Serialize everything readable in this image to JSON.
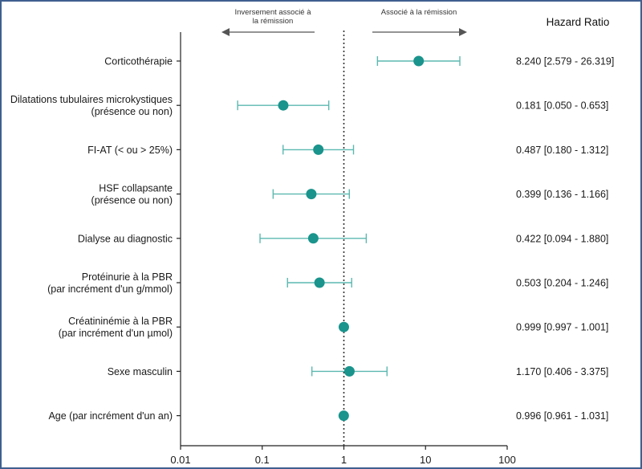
{
  "colors": {
    "marker": "#1a948c",
    "whisker": "#5bb8b0",
    "axis": "#222222",
    "arrow": "#555555",
    "border": "#3f5f8f"
  },
  "chart_data": {
    "type": "forest",
    "scale": "log",
    "xlim": [
      0.01,
      100
    ],
    "reference": 1,
    "xticks": [
      "0.01",
      "0.1",
      "1",
      "10",
      "100"
    ],
    "xtick_values": [
      0.01,
      0.1,
      1,
      10,
      100
    ],
    "column_header": "Hazard Ratio",
    "direction_left": [
      "Inversement associé à",
      "la rémission"
    ],
    "direction_right": "Associé à la rémission",
    "rows": [
      {
        "label": [
          "Corticothérapie"
        ],
        "hr": 8.24,
        "lo": 2.579,
        "hi": 26.319,
        "text": "8.240 [2.579 - 26.319]"
      },
      {
        "label": [
          "Dilatations tubulaires microkystiques",
          "(présence ou non)"
        ],
        "hr": 0.181,
        "lo": 0.05,
        "hi": 0.653,
        "text": "0.181 [0.050 - 0.653]"
      },
      {
        "label": [
          "FI-AT (< ou > 25%)"
        ],
        "hr": 0.487,
        "lo": 0.18,
        "hi": 1.312,
        "text": "0.487 [0.180 - 1.312]"
      },
      {
        "label": [
          "HSF collapsante",
          "(présence ou non)"
        ],
        "hr": 0.399,
        "lo": 0.136,
        "hi": 1.166,
        "text": "0.399 [0.136 - 1.166]"
      },
      {
        "label": [
          "Dialyse au diagnostic"
        ],
        "hr": 0.422,
        "lo": 0.094,
        "hi": 1.88,
        "text": "0.422 [0.094 - 1.880]"
      },
      {
        "label": [
          "Protéinurie à la PBR",
          "(par incrément d'un g/mmol)"
        ],
        "hr": 0.503,
        "lo": 0.204,
        "hi": 1.246,
        "text": "0.503 [0.204 - 1.246]"
      },
      {
        "label": [
          "Créatininémie à la PBR",
          "(par incrément d'un µmol)"
        ],
        "hr": 0.999,
        "lo": 0.997,
        "hi": 1.001,
        "text": "0.999 [0.997 - 1.001]"
      },
      {
        "label": [
          "Sexe masculin"
        ],
        "hr": 1.17,
        "lo": 0.406,
        "hi": 3.375,
        "text": "1.170 [0.406 - 3.375]"
      },
      {
        "label": [
          "Age (par incrément d'un an)"
        ],
        "hr": 0.996,
        "lo": 0.961,
        "hi": 1.031,
        "text": "0.996 [0.961 - 1.031]"
      }
    ]
  }
}
